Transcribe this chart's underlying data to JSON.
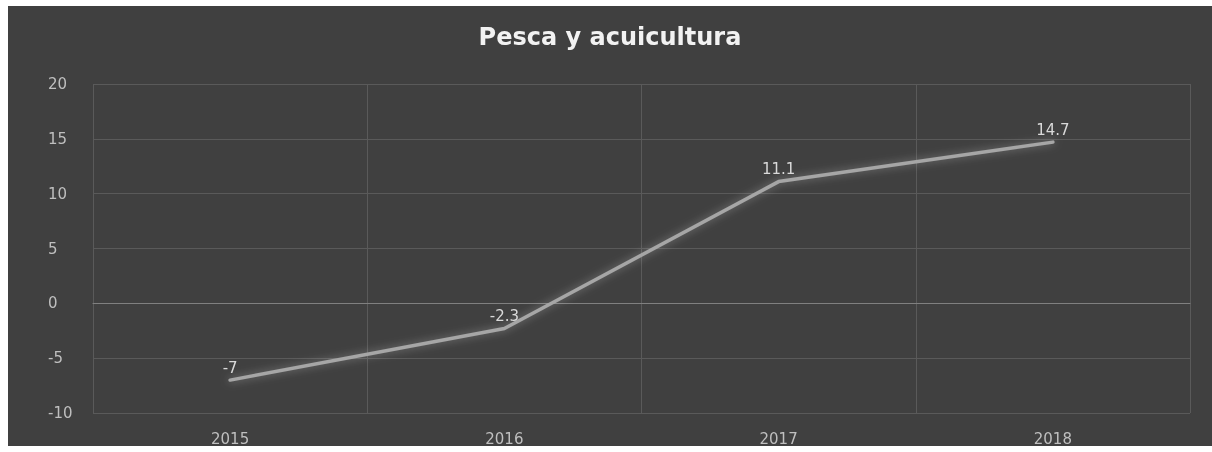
{
  "chart_data": {
    "type": "line",
    "title": "Pesca y acuicultura",
    "categories": [
      "2015",
      "2016",
      "2017",
      "2018"
    ],
    "series": [
      {
        "color": "#a6a6a6",
        "values": [
          -7,
          -2.3,
          11.1,
          14.7
        ]
      }
    ],
    "ylim": [
      -10,
      20
    ],
    "yticks": [
      -10,
      -5,
      0,
      5,
      10,
      15,
      20
    ],
    "grid": true,
    "data_labels": true,
    "marker": "none",
    "line_style": "solid"
  }
}
